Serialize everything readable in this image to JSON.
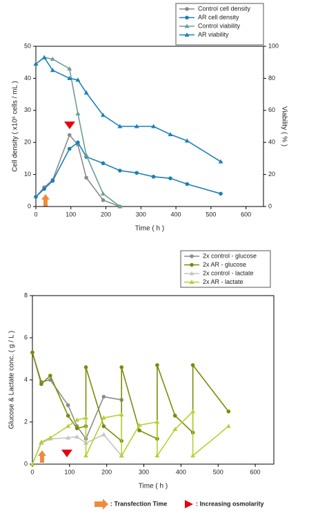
{
  "chart_data": [
    {
      "type": "line",
      "x_label": "Time ( h )",
      "y_label": "Cell density ( x10⁶ cells / mL )",
      "y2_label": "Viability ( % )",
      "xlim": [
        0,
        650
      ],
      "xticks": [
        0,
        100,
        200,
        300,
        400,
        500,
        600
      ],
      "ylim": [
        0,
        50
      ],
      "yticks": [
        0,
        10,
        20,
        30,
        40,
        50
      ],
      "y2lim": [
        0,
        100
      ],
      "y2ticks": [
        0,
        20,
        40,
        60,
        80,
        100
      ],
      "series": [
        {
          "name": "Control cell density",
          "color": "#8a8a8a",
          "marker": "circle",
          "x": [
            0,
            24,
            48,
            96,
            120,
            144,
            192,
            240
          ],
          "values": [
            3,
            6,
            8.3,
            22.3,
            19.3,
            9,
            2,
            0
          ]
        },
        {
          "name": "AR cell density",
          "color": "#1b80b8",
          "marker": "circle",
          "x": [
            0,
            24,
            48,
            96,
            120,
            144,
            192,
            240,
            288,
            336,
            384,
            432,
            528
          ],
          "values": [
            3,
            5.5,
            8,
            18,
            20,
            15.5,
            13.5,
            11.2,
            10.5,
            9.3,
            8.8,
            7,
            4
          ]
        },
        {
          "name": "Control viability",
          "color": "#6a9e96",
          "marker": "triangle",
          "axis": "y2",
          "x": [
            0,
            24,
            48,
            96,
            120,
            144,
            192,
            240
          ],
          "values": [
            89,
            93,
            92,
            86,
            58,
            32,
            8,
            0
          ]
        },
        {
          "name": "AR viability",
          "color": "#1b80b8",
          "marker": "triangle",
          "axis": "y2",
          "x": [
            0,
            24,
            48,
            96,
            120,
            144,
            192,
            240,
            288,
            336,
            384,
            432,
            528
          ],
          "values": [
            89,
            93,
            85,
            80,
            79,
            71,
            57,
            50,
            50,
            50,
            45,
            41,
            28
          ]
        }
      ]
    },
    {
      "type": "line",
      "x_label": "Time ( h )",
      "y_label": "Glucose & Lactate conc. ( g / L )",
      "xlim": [
        0,
        650
      ],
      "xticks": [
        0,
        100,
        200,
        300,
        400,
        500,
        600
      ],
      "ylim": [
        0,
        8
      ],
      "yticks": [
        0,
        2,
        4,
        6,
        8
      ],
      "series": [
        {
          "name": "2x control - glucose",
          "color": "#8c8c8c",
          "marker": "circle",
          "x": [
            0,
            24,
            48,
            96,
            120,
            144,
            192,
            240
          ],
          "values": [
            5.3,
            3.9,
            4,
            2.8,
            1.8,
            1.2,
            3.2,
            3.05
          ]
        },
        {
          "name": "2x AR - glucose",
          "color": "#7d8a05",
          "marker": "circle",
          "x": [
            0,
            24,
            48,
            96,
            120,
            144,
            144,
            192,
            240,
            240,
            288,
            336,
            336,
            384,
            432,
            432,
            528
          ],
          "values": [
            5.3,
            3.8,
            4.2,
            2.3,
            1.7,
            1.8,
            4.6,
            1.8,
            1.1,
            4.6,
            1.6,
            1.2,
            4.7,
            2.3,
            1.5,
            4.7,
            2.5
          ]
        },
        {
          "name": "2x control - lactate",
          "color": "#c4c4c4",
          "marker": "triangle",
          "x": [
            0,
            24,
            48,
            96,
            120,
            144,
            192,
            240
          ],
          "values": [
            0,
            1,
            1.2,
            1.25,
            1.3,
            1.0,
            1.4,
            0.4
          ]
        },
        {
          "name": "2x AR - lactate",
          "color": "#b4d132",
          "marker": "triangle",
          "x": [
            0,
            24,
            48,
            96,
            120,
            144,
            144,
            192,
            240,
            240,
            288,
            336,
            336,
            384,
            432,
            432,
            528
          ],
          "values": [
            0,
            1.05,
            1.25,
            1.8,
            2.1,
            2.2,
            0.4,
            2.2,
            2.35,
            0.4,
            1.85,
            2.0,
            0.4,
            1.65,
            2.5,
            0.4,
            1.8
          ]
        }
      ]
    }
  ],
  "footer_legend": {
    "items": [
      ": Transfection Time",
      ": Increasing osmolarity"
    ]
  }
}
